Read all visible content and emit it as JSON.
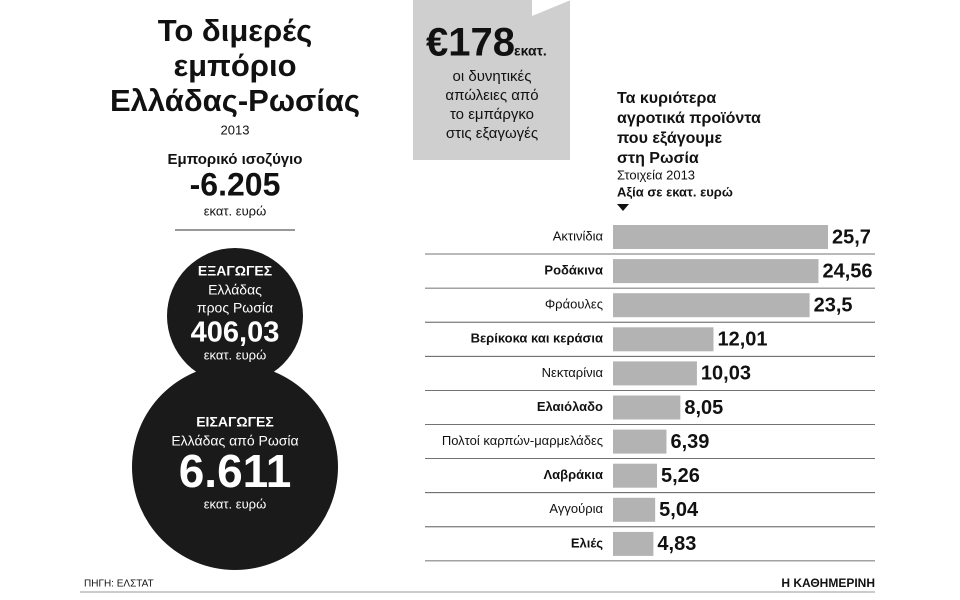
{
  "header": {
    "title": [
      "Το διμερές",
      "εμπόριο",
      "Ελλάδας-Ρωσίας"
    ],
    "year": "2013"
  },
  "balance": {
    "label": "Εμπορικό ισοζύγιο",
    "value": "-6.205",
    "unit": "εκατ. ευρώ"
  },
  "exports": {
    "label": "ΕΞΑΓΩΓΕΣ",
    "description": [
      "Ελλάδας",
      "προς Ρωσία"
    ],
    "value": "406,03",
    "unit": "εκατ. ευρώ"
  },
  "imports": {
    "label": "ΕΙΣΑΓΩΓΕΣ",
    "description": [
      "Ελλάδας από Ρωσία"
    ],
    "value": "6.611",
    "unit": "εκατ. ευρώ"
  },
  "callout": {
    "value": "€178",
    "unit": "εκατ.",
    "text": [
      "οι δυνητικές",
      "απώλειες από",
      "το εμπάργκο",
      "στις εξαγωγές"
    ]
  },
  "source": "ΠΗΓΗ: ΕΛΣΤΑΤ",
  "brand": "Η ΚΑΘΗΜΕΡΙΝΗ",
  "chart_data": {
    "type": "bar",
    "orientation": "horizontal",
    "title": [
      "Τα κυριότερα",
      "αγροτικά προϊόντα",
      "που εξάγουμε",
      "στη Ρωσία"
    ],
    "subtitle": "Στοιχεία 2013",
    "axis_label": "Αξία σε εκατ. ευρώ",
    "categories": [
      "Ακτινίδια",
      "Ροδάκινα",
      "Φράουλες",
      "Βερίκοκα και κεράσια",
      "Νεκταρίνια",
      "Ελαιόλαδο",
      "Πολτοί καρπών-μαρμελάδες",
      "Λαβράκια",
      "Αγγούρια",
      "Ελιές"
    ],
    "values": [
      25.7,
      24.56,
      23.5,
      12.01,
      10.03,
      8.05,
      6.39,
      5.26,
      5.04,
      4.83
    ],
    "value_labels": [
      "25,7",
      "24,56",
      "23,5",
      "12,01",
      "10,03",
      "8,05",
      "6,39",
      "5,26",
      "5,04",
      "4,83"
    ],
    "color": "#b3b3b3"
  }
}
